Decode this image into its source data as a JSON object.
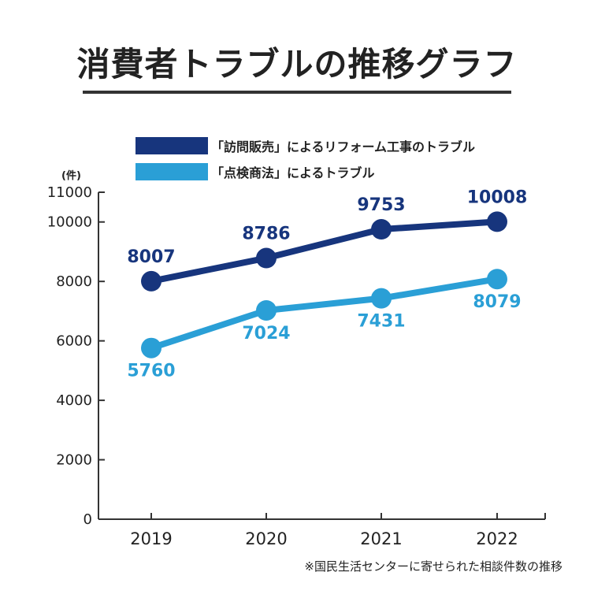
{
  "title": "消費者トラブルの推移グラフ",
  "unit_label": "(件)",
  "footnote": "※国民生活センターに寄せられた相談件数の推移",
  "colors": {
    "dark_series": "#17357d",
    "light_series": "#2a9fd6",
    "axis": "#333333",
    "title_rule": "#333333"
  },
  "chart_data": {
    "type": "line",
    "title": "消費者トラブルの推移グラフ",
    "categories": [
      "2019",
      "2020",
      "2021",
      "2022"
    ],
    "series": [
      {
        "name": "「訪問販売」によるリフォーム工事のトラブル",
        "color": "#17357d",
        "values": [
          8007,
          8786,
          9753,
          10008
        ]
      },
      {
        "name": "「点検商法」によるトラブル",
        "color": "#2a9fd6",
        "values": [
          5760,
          7024,
          7431,
          8079
        ]
      }
    ],
    "y_ticks": [
      "0",
      "2000",
      "4000",
      "6000",
      "8000",
      "10000",
      "11000"
    ],
    "ylim": [
      0,
      11000
    ],
    "y_unit": "(件)",
    "grid": false,
    "legend_position": "top-center"
  }
}
